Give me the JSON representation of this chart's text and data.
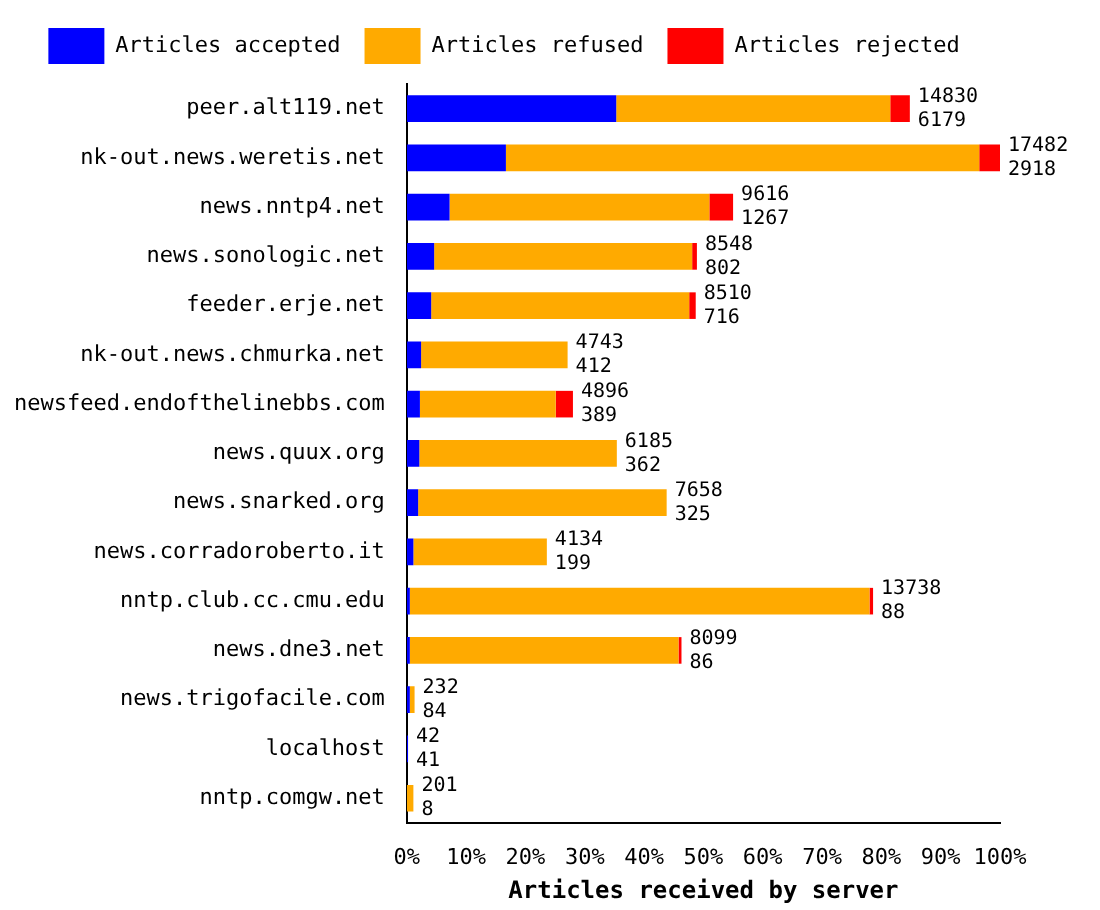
{
  "chart_data": {
    "type": "bar",
    "orientation": "horizontal",
    "stacked": true,
    "xlabel": "Articles received by server",
    "categories": [
      "peer.alt119.net",
      "nk-out.news.weretis.net",
      "news.nntp4.net",
      "news.sonologic.net",
      "feeder.erje.net",
      "nk-out.news.chmurka.net",
      "newsfeed.endofthelinebbs.com",
      "news.quux.org",
      "news.snarked.org",
      "news.corradoroberto.it",
      "nntp.club.cc.cmu.edu",
      "news.dne3.net",
      "news.trigofacile.com",
      "localhost",
      "nntp.comgw.net"
    ],
    "series": [
      {
        "name": "Articles accepted",
        "color": "#0000ff",
        "values": [
          35.3,
          16.7,
          7.2,
          4.6,
          4.1,
          2.4,
          2.2,
          2.1,
          1.9,
          1.1,
          0.5,
          0.5,
          0.5,
          0.2,
          null
        ]
      },
      {
        "name": "Articles refused",
        "color": "#ffaa00",
        "values": [
          46.2,
          79.8,
          43.8,
          43.5,
          43.5,
          24.7,
          22.9,
          33.3,
          41.9,
          22.5,
          77.5,
          45.3,
          0.8,
          0,
          1.1
        ]
      },
      {
        "name": "Articles rejected",
        "color": "#ff0000",
        "values": [
          3.3,
          3.5,
          4.0,
          0.8,
          1.1,
          0,
          2.9,
          0,
          0,
          0,
          0.6,
          0.5,
          0,
          0,
          0
        ]
      }
    ],
    "annotations": [
      {
        "text": "14830",
        "x": 84.8,
        "y": "peer.alt119.net"
      },
      {
        "text": "6179",
        "x": 84.8,
        "y": "peer.alt119.net"
      },
      {
        "text": "17482",
        "x": 100,
        "y": "nk-out.news.weretis.net"
      },
      {
        "text": "2918",
        "x": 100,
        "y": "nk-out.news.weretis.net"
      },
      {
        "text": "9616",
        "x": 55,
        "y": "news.nntp4.net"
      },
      {
        "text": "1267",
        "x": 55,
        "y": "news.nntp4.net"
      },
      {
        "text": "8548",
        "x": 48.9,
        "y": "news.sonologic.net"
      },
      {
        "text": "802",
        "x": 48.9,
        "y": "news.sonologic.net"
      },
      {
        "text": "8510",
        "x": 48.7,
        "y": "feeder.erje.net"
      },
      {
        "text": "716",
        "x": 48.7,
        "y": "feeder.erje.net"
      },
      {
        "text": "4743",
        "x": 27.1,
        "y": "nk-out.news.chmurka.net"
      },
      {
        "text": "412",
        "x": 27.1,
        "y": "nk-out.news.chmurka.net"
      },
      {
        "text": "4896",
        "x": 28,
        "y": "newsfeed.endofthelinebbs.com"
      },
      {
        "text": "389",
        "x": 28,
        "y": "newsfeed.endofthelinebbs.com"
      },
      {
        "text": "6185",
        "x": 35.4,
        "y": "news.quux.org"
      },
      {
        "text": "362",
        "x": 35.4,
        "y": "news.quux.org"
      },
      {
        "text": "7658",
        "x": 43.8,
        "y": "news.snarked.org"
      },
      {
        "text": "325",
        "x": 43.8,
        "y": "news.snarked.org"
      },
      {
        "text": "4134",
        "x": 23.6,
        "y": "news.corradoroberto.it"
      },
      {
        "text": "199",
        "x": 23.6,
        "y": "news.corradoroberto.it"
      },
      {
        "text": "13738",
        "x": 78.6,
        "y": "nntp.club.cc.cmu.edu"
      },
      {
        "text": "88",
        "x": 78.6,
        "y": "nntp.club.cc.cmu.edu"
      },
      {
        "text": "8099",
        "x": 46.3,
        "y": "news.dne3.net"
      },
      {
        "text": "86",
        "x": 46.3,
        "y": "news.dne3.net"
      },
      {
        "text": "232",
        "x": 1.3,
        "y": "news.trigofacile.com"
      },
      {
        "text": "84",
        "x": 1.3,
        "y": "news.trigofacile.com"
      },
      {
        "text": "42",
        "x": 0.2,
        "y": "localhost"
      },
      {
        "text": "41",
        "x": 0.2,
        "y": "localhost"
      },
      {
        "text": "201",
        "x": 1.1,
        "y": "nntp.comgw.net"
      },
      {
        "text": "8",
        "x": 1.1,
        "y": "nntp.comgw.net"
      }
    ],
    "xlim": [
      0,
      100
    ],
    "xticks": [
      {
        "value": 0,
        "label": "0%"
      },
      {
        "value": 10,
        "label": "10%"
      },
      {
        "value": 20,
        "label": "20%"
      },
      {
        "value": 30,
        "label": "30%"
      },
      {
        "value": 40,
        "label": "40%"
      },
      {
        "value": 50,
        "label": "50%"
      },
      {
        "value": 60,
        "label": "60%"
      },
      {
        "value": 70,
        "label": "70%"
      },
      {
        "value": 80,
        "label": "80%"
      },
      {
        "value": 90,
        "label": "90%"
      },
      {
        "value": 100,
        "label": "100%"
      }
    ],
    "grid": false,
    "legend": "top"
  }
}
